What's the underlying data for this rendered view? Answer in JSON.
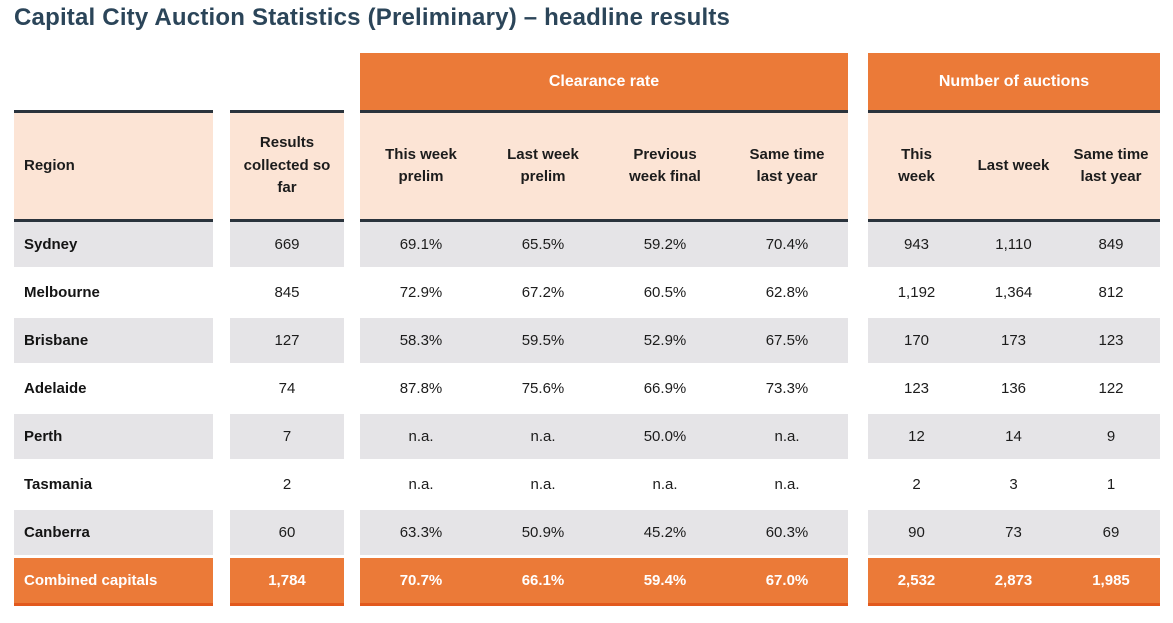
{
  "title": "Capital City Auction Statistics (Preliminary) – headline results",
  "colors": {
    "orange": "#EB7A38",
    "orange-dark": "#E2591D",
    "peach": "#FCE4D5",
    "gray": "#E5E4E7",
    "dark-line": "#2A333C",
    "title-navy": "#2B4559",
    "text-dark": "#1C1C1C"
  },
  "table": {
    "region_header": "Region",
    "results_header": "Results collected so far",
    "groups": [
      {
        "label": "Clearance rate",
        "columns": [
          "This week prelim",
          "Last week prelim",
          "Previous week final",
          "Same time last year"
        ]
      },
      {
        "label": "Number of auctions",
        "columns": [
          "This week",
          "Last week",
          "Same time last year"
        ]
      }
    ],
    "rows": [
      {
        "region": "Sydney",
        "results": "669",
        "clearance": [
          "69.1%",
          "65.5%",
          "59.2%",
          "70.4%"
        ],
        "auctions": [
          "943",
          "1,110",
          "849"
        ]
      },
      {
        "region": "Melbourne",
        "results": "845",
        "clearance": [
          "72.9%",
          "67.2%",
          "60.5%",
          "62.8%"
        ],
        "auctions": [
          "1,192",
          "1,364",
          "812"
        ]
      },
      {
        "region": "Brisbane",
        "results": "127",
        "clearance": [
          "58.3%",
          "59.5%",
          "52.9%",
          "67.5%"
        ],
        "auctions": [
          "170",
          "173",
          "123"
        ]
      },
      {
        "region": "Adelaide",
        "results": "74",
        "clearance": [
          "87.8%",
          "75.6%",
          "66.9%",
          "73.3%"
        ],
        "auctions": [
          "123",
          "136",
          "122"
        ]
      },
      {
        "region": "Perth",
        "results": "7",
        "clearance": [
          "n.a.",
          "n.a.",
          "50.0%",
          "n.a."
        ],
        "auctions": [
          "12",
          "14",
          "9"
        ]
      },
      {
        "region": "Tasmania",
        "results": "2",
        "clearance": [
          "n.a.",
          "n.a.",
          "n.a.",
          "n.a."
        ],
        "auctions": [
          "2",
          "3",
          "1"
        ]
      },
      {
        "region": "Canberra",
        "results": "60",
        "clearance": [
          "63.3%",
          "50.9%",
          "45.2%",
          "60.3%"
        ],
        "auctions": [
          "90",
          "73",
          "69"
        ]
      }
    ],
    "total_row": {
      "region": "Combined capitals",
      "results": "1,784",
      "clearance": [
        "70.7%",
        "66.1%",
        "59.4%",
        "67.0%"
      ],
      "auctions": [
        "2,532",
        "2,873",
        "1,985"
      ]
    }
  }
}
